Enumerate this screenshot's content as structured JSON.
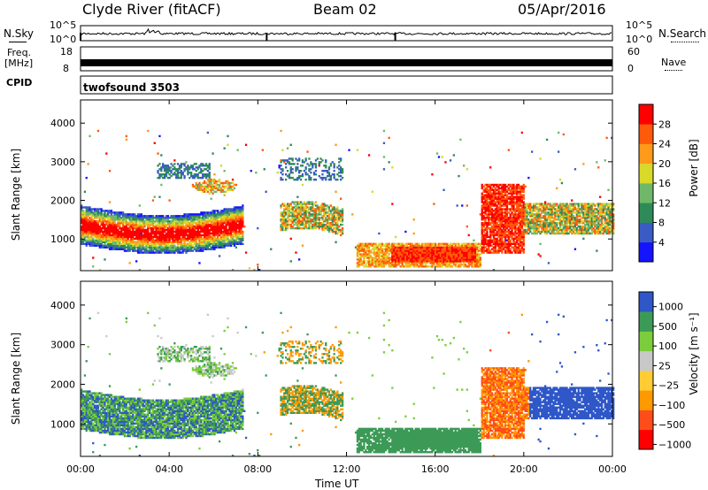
{
  "header": {
    "station": "Clyde River (fitACF)",
    "beam": "Beam 02",
    "date": "05/Apr/2016"
  },
  "noise_panel": {
    "left_label": "N.Sky",
    "right_label": "N.Search",
    "left_ticks": [
      "10^5",
      "10^0"
    ],
    "right_ticks": [
      "10^5",
      "10^0"
    ]
  },
  "freq_panel": {
    "left_label_1": "Freq.",
    "left_label_2": "[MHz]",
    "left_ticks": [
      "18",
      "8"
    ],
    "right_label": "Nave",
    "right_ticks": [
      "60",
      "0"
    ]
  },
  "cpid_panel": {
    "label": "CPID",
    "value": "twofsound 3503"
  },
  "colors": {
    "power": [
      "#1414ff",
      "#3b5bc4",
      "#2e8b57",
      "#6fb86a",
      "#d9d92a",
      "#ff9a1a",
      "#ff5a0a",
      "#ff0000"
    ],
    "velocity": [
      "#ff0000",
      "#ff4d1a",
      "#ff9900",
      "#ffcc33",
      "#c8c8c8",
      "#7ccd3c",
      "#3c9a57",
      "#2f57c8"
    ]
  },
  "chart_data": [
    {
      "type": "heatmap",
      "name": "power",
      "xlabel": "",
      "ylabel": "Slant Range [km]",
      "xlim": [
        0,
        24
      ],
      "ylim": [
        180,
        4600
      ],
      "y_ticks": [
        "1000",
        "2000",
        "3000",
        "4000"
      ],
      "colorbar": {
        "label": "Power [dB]",
        "ticks": [
          "4",
          "8",
          "12",
          "16",
          "20",
          "24",
          "28"
        ],
        "range": [
          0,
          32
        ]
      }
    },
    {
      "type": "heatmap",
      "name": "velocity",
      "xlabel": "Time UT",
      "ylabel": "Slant Range [km]",
      "xlim": [
        0,
        24
      ],
      "ylim": [
        180,
        4600
      ],
      "x_ticks": [
        "00:00",
        "04:00",
        "08:00",
        "12:00",
        "16:00",
        "20:00",
        "00:00"
      ],
      "y_ticks": [
        "1000",
        "2000",
        "3000",
        "4000"
      ],
      "colorbar": {
        "label": "Velocity [m s⁻¹]",
        "ticks": [
          "1000",
          "500",
          "100",
          "25",
          "−25",
          "−100",
          "−500",
          "−1000"
        ]
      }
    }
  ]
}
